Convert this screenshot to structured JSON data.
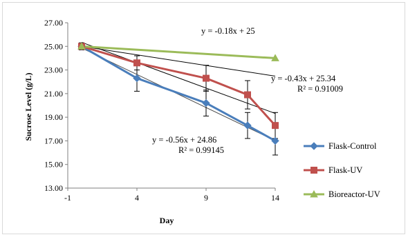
{
  "chart_data": {
    "type": "line",
    "title": "",
    "xlabel": "Day",
    "ylabel": "Sucrose Level (g/L)",
    "xlim": [
      -1,
      14
    ],
    "ylim": [
      13,
      27
    ],
    "x_ticks": [
      -1,
      4,
      9,
      14
    ],
    "x_tick_labels": [
      "-1",
      "4",
      "9",
      "14"
    ],
    "y_ticks": [
      13,
      15,
      17,
      19,
      21,
      23,
      25,
      27
    ],
    "y_tick_labels": [
      "13.00",
      "15.00",
      "17.00",
      "19.00",
      "21.00",
      "23.00",
      "25.00",
      "27.00"
    ],
    "grid": false,
    "legend_position": "right",
    "series": [
      {
        "name": "Flask-Control",
        "color": "#4a7ebb",
        "marker": "diamond",
        "x": [
          0,
          4,
          9,
          12,
          14
        ],
        "values": [
          25.0,
          22.3,
          20.2,
          18.3,
          17.0
        ],
        "error": [
          0.3,
          1.1,
          1.1,
          1.1,
          1.2
        ]
      },
      {
        "name": "Flask-UV",
        "color": "#c0504d",
        "marker": "square",
        "x": [
          0,
          4,
          9,
          12,
          14
        ],
        "values": [
          25.0,
          23.6,
          22.3,
          20.9,
          18.3
        ],
        "error": [
          0.2,
          0.6,
          1.1,
          1.2,
          1.1
        ]
      },
      {
        "name": "Bioreactor-UV",
        "color": "#9bbb59",
        "marker": "triangle",
        "x": [
          0,
          14
        ],
        "values": [
          25.0,
          24.0
        ],
        "error": [
          0,
          0
        ]
      }
    ],
    "trendlines": [
      {
        "color": "#4a4a4a",
        "slope": -0.56,
        "intercept": 24.86,
        "x": [
          0,
          14
        ]
      },
      {
        "color": "#000000",
        "slope": -0.43,
        "intercept": 25.34,
        "x": [
          0,
          14
        ]
      },
      {
        "color": "#000000",
        "slope": -0.18,
        "intercept": 25,
        "x": [
          0,
          14
        ]
      }
    ],
    "annotations": [
      {
        "id": "eq_bio",
        "lines": [
          "y = -0.18x + 25"
        ]
      },
      {
        "id": "eq_uv",
        "lines": [
          "y = -0.43x + 25.34",
          "R² = 0.91009"
        ]
      },
      {
        "id": "eq_ctrl",
        "lines": [
          "y = -0.56x + 24.86",
          "R² = 0.99145"
        ]
      }
    ]
  }
}
